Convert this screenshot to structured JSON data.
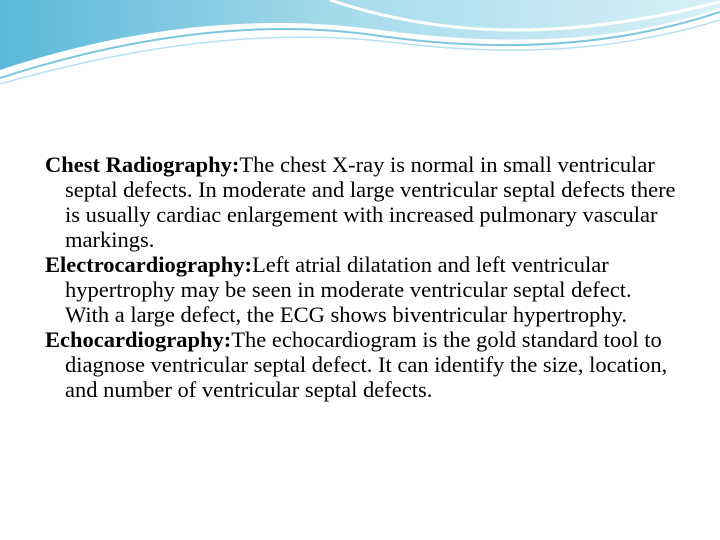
{
  "paragraphs": [
    {
      "term": "Chest Radiography:",
      "text": "The chest X-ray is normal in small ventricular septal defects. In moderate and large ventricular septal defects there is usually cardiac enlargement with  increased pulmonary vascular markings."
    },
    {
      "term": "Electrocardiography:",
      "text": "Left atrial dilatation and left ventricular hypertrophy may be seen in moderate ventricular septal defect. With a large defect, the ECG shows biventricular hypertrophy."
    },
    {
      "term": "Echocardiography:",
      "text": "The echocardiogram is the gold standard tool to diagnose ventricular septal defect. It can identify the size, location, and number of ventricular septal defects."
    }
  ]
}
